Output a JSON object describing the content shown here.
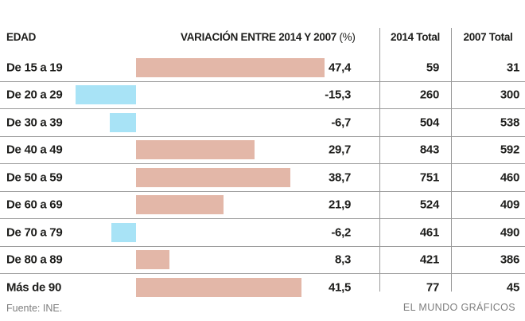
{
  "header": {
    "edad": "EDAD",
    "variacion": "VARIACIÓN ENTRE 2014 Y 2007 ",
    "variacion_unit": "(%)",
    "col_2014": "2014 Total",
    "col_2007": "2007 Total"
  },
  "rows": [
    {
      "label": "De 15 a 19",
      "pct": 47.4,
      "pct_label": "47,4",
      "total_2014": "59",
      "total_2007": "31"
    },
    {
      "label": "De 20 a 29",
      "pct": -15.3,
      "pct_label": "-15,3",
      "total_2014": "260",
      "total_2007": "300"
    },
    {
      "label": "De 30 a 39",
      "pct": -6.7,
      "pct_label": "-6,7",
      "total_2014": "504",
      "total_2007": "538"
    },
    {
      "label": "De 40 a 49",
      "pct": 29.7,
      "pct_label": "29,7",
      "total_2014": "843",
      "total_2007": "592"
    },
    {
      "label": "De 50 a 59",
      "pct": 38.7,
      "pct_label": "38,7",
      "total_2014": "751",
      "total_2007": "460"
    },
    {
      "label": "De 60 a 69",
      "pct": 21.9,
      "pct_label": "21,9",
      "total_2014": "524",
      "total_2007": "409"
    },
    {
      "label": "De 70 a 79",
      "pct": -6.2,
      "pct_label": "-6,2",
      "total_2014": "461",
      "total_2007": "490"
    },
    {
      "label": "De 80 a 89",
      "pct": 8.3,
      "pct_label": "8,3",
      "total_2014": "421",
      "total_2007": "386"
    },
    {
      "label": "Más de 90",
      "pct": 41.5,
      "pct_label": "41,5",
      "total_2014": "77",
      "total_2007": "45"
    }
  ],
  "footer": {
    "source": "Fuente: INE.",
    "credit": "EL MUNDO GRÁFICOS"
  },
  "colors": {
    "bar_positive": "#e3b7a8",
    "bar_negative": "#a8e3f6",
    "grid_line": "#9b9b9b",
    "text_dark": "#1d1d1b",
    "text_muted": "#7e7e7e"
  },
  "chart_data": {
    "type": "bar",
    "orientation": "horizontal",
    "title": "VARIACIÓN ENTRE 2014 Y 2007 (%)",
    "categories": [
      "De 15 a 19",
      "De 20 a 29",
      "De 30 a 39",
      "De 40 a 49",
      "De 50 a 59",
      "De 60 a 69",
      "De 70 a 79",
      "De 80 a 89",
      "Más de 90"
    ],
    "series": [
      {
        "name": "Variación entre 2014 y 2007 (%)",
        "values": [
          47.4,
          -15.3,
          -6.7,
          29.7,
          38.7,
          21.9,
          -6.2,
          8.3,
          41.5
        ]
      },
      {
        "name": "2014 Total",
        "values": [
          59,
          260,
          504,
          843,
          751,
          524,
          461,
          421,
          77
        ]
      },
      {
        "name": "2007 Total",
        "values": [
          31,
          300,
          538,
          592,
          460,
          409,
          490,
          386,
          45
        ]
      }
    ],
    "xlabel": "",
    "ylabel": "EDAD",
    "xlim": [
      -16,
      48
    ],
    "grid": false,
    "legend_position": "none",
    "source": "Fuente: INE.",
    "credit": "EL MUNDO GRÁFICOS"
  }
}
